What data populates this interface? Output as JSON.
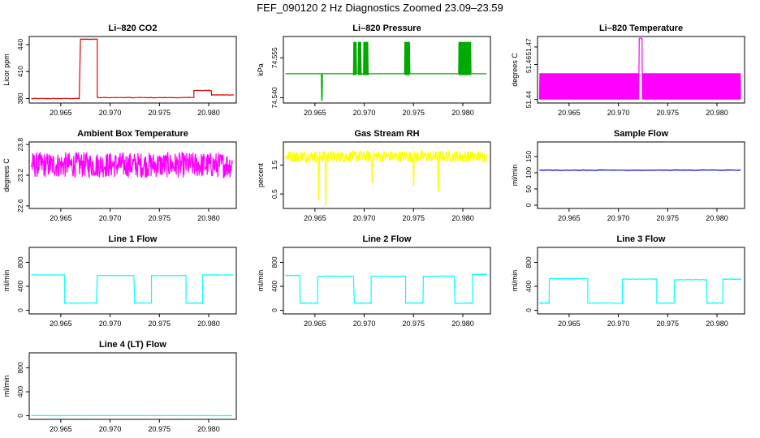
{
  "title": "FEF_090120  2 Hz Diagnostics Zoomed 23.09–23.59",
  "x_ticks": [
    "20.965",
    "20.970",
    "20.975",
    "20.980"
  ],
  "xlim": [
    20.9618,
    20.9828
  ],
  "chart_data": [
    {
      "type": "line",
      "title": "Li–820 CO2",
      "ylabel": "Licor ppm",
      "color": "#dd0000",
      "yticks": [
        "380",
        "410",
        "440"
      ],
      "ytick_values": [
        380,
        410,
        440
      ],
      "ylim": [
        375,
        449
      ],
      "segments": [
        [
          20.962,
          20.967,
          380
        ],
        [
          20.967,
          20.9687,
          446
        ],
        [
          20.9687,
          20.9785,
          381
        ],
        [
          20.9785,
          20.9803,
          389
        ],
        [
          20.9803,
          20.9826,
          384
        ]
      ]
    },
    {
      "type": "line",
      "title": "Li–820 Pressure",
      "ylabel": "kPa",
      "color": "#00aa00",
      "yticks": [
        "74.540",
        "74.555"
      ],
      "ytick_values": [
        74.54,
        74.555
      ],
      "ylim": [
        74.538,
        74.563
      ],
      "baseline": 74.549,
      "dip_x": 20.9657,
      "dip_y": 74.539,
      "noise_bands": [
        [
          20.9689,
          20.9692
        ],
        [
          20.9694,
          20.9697
        ],
        [
          20.9699,
          20.9704
        ],
        [
          20.9741,
          20.9746
        ],
        [
          20.9796,
          20.9808
        ]
      ]
    },
    {
      "type": "line",
      "title": "Li–820 Temperature",
      "ylabel": "degrees C",
      "color": "#ff00ff",
      "yticks": [
        "51.44",
        "51.46",
        "51.47"
      ],
      "ytick_values": [
        51.44,
        51.46,
        51.47
      ],
      "ylim": [
        51.438,
        51.476
      ],
      "low": 51.44,
      "high": 51.455,
      "spike_x": [
        20.9721,
        20.9724
      ],
      "spike_y": 51.475
    },
    {
      "type": "line",
      "title": "Ambient Box Temperature",
      "ylabel": "degrees C",
      "color": "#ff00ff",
      "yticks": [
        "22.6",
        "23.2",
        "23.8"
      ],
      "ytick_values": [
        22.6,
        23.2,
        23.8
      ],
      "ylim": [
        22.55,
        23.85
      ],
      "center": 23.4,
      "amp": 0.25
    },
    {
      "type": "line",
      "title": "Gas Stream RH",
      "ylabel": "percent",
      "color": "#ffff00",
      "yticks": [
        "0.5",
        "1.5"
      ],
      "ytick_values": [
        0.5,
        1.5
      ],
      "ylim": [
        0,
        2.3
      ],
      "center": 1.8,
      "amp": 0.2,
      "dips": [
        [
          20.9654,
          0.3
        ],
        [
          20.9661,
          0.1
        ],
        [
          20.9708,
          0.9
        ],
        [
          20.975,
          0.8
        ],
        [
          20.9775,
          0.6
        ]
      ]
    },
    {
      "type": "line",
      "title": "Sample Flow",
      "ylabel": "ml/min",
      "color": "#0000cc",
      "yticks": [
        "0",
        "50",
        "100",
        "150"
      ],
      "ytick_values": [
        0,
        50,
        100,
        150
      ],
      "ylim": [
        -10,
        195
      ],
      "level": 108
    },
    {
      "type": "line",
      "title": "Line 1 Flow",
      "ylabel": "ml/min",
      "color": "#00ffff",
      "yticks": [
        "0",
        "400",
        "800"
      ],
      "ytick_values": [
        0,
        400,
        800
      ],
      "ylim": [
        -60,
        1050
      ],
      "segments": [
        [
          20.962,
          20.9654,
          590
        ],
        [
          20.9654,
          20.9687,
          120
        ],
        [
          20.9687,
          20.9725,
          580
        ],
        [
          20.9725,
          20.9742,
          120
        ],
        [
          20.9742,
          20.9777,
          580
        ],
        [
          20.9777,
          20.9794,
          120
        ],
        [
          20.9794,
          20.9825,
          590
        ]
      ]
    },
    {
      "type": "line",
      "title": "Line 2 Flow",
      "ylabel": "ml/min",
      "color": "#00ffff",
      "yticks": [
        "0",
        "400",
        "800"
      ],
      "ytick_values": [
        0,
        400,
        800
      ],
      "ylim": [
        -60,
        1050
      ],
      "segments": [
        [
          20.962,
          20.9635,
          580
        ],
        [
          20.9635,
          20.9653,
          120
        ],
        [
          20.9653,
          20.969,
          570
        ],
        [
          20.969,
          20.9707,
          120
        ],
        [
          20.9707,
          20.9742,
          570
        ],
        [
          20.9742,
          20.976,
          120
        ],
        [
          20.976,
          20.9792,
          570
        ],
        [
          20.9792,
          20.981,
          120
        ],
        [
          20.981,
          20.9825,
          600
        ]
      ]
    },
    {
      "type": "line",
      "title": "Line 3 Flow",
      "ylabel": "ml/min",
      "color": "#00ffff",
      "yticks": [
        "0",
        "400",
        "800"
      ],
      "ytick_values": [
        0,
        400,
        800
      ],
      "ylim": [
        -60,
        1050
      ],
      "segments": [
        [
          20.962,
          20.963,
          120
        ],
        [
          20.963,
          20.9669,
          530
        ],
        [
          20.9669,
          20.9704,
          120
        ],
        [
          20.9704,
          20.9739,
          520
        ],
        [
          20.9739,
          20.9757,
          120
        ],
        [
          20.9757,
          20.979,
          510
        ],
        [
          20.979,
          20.9806,
          120
        ],
        [
          20.9806,
          20.9825,
          520
        ]
      ]
    },
    {
      "type": "line",
      "title": "Line 4 (LT) Flow",
      "ylabel": "ml/min",
      "color": "#00ffff",
      "yticks": [
        "0",
        "400",
        "800"
      ],
      "ytick_values": [
        0,
        400,
        800
      ],
      "ylim": [
        -60,
        1050
      ],
      "level": 2
    }
  ]
}
